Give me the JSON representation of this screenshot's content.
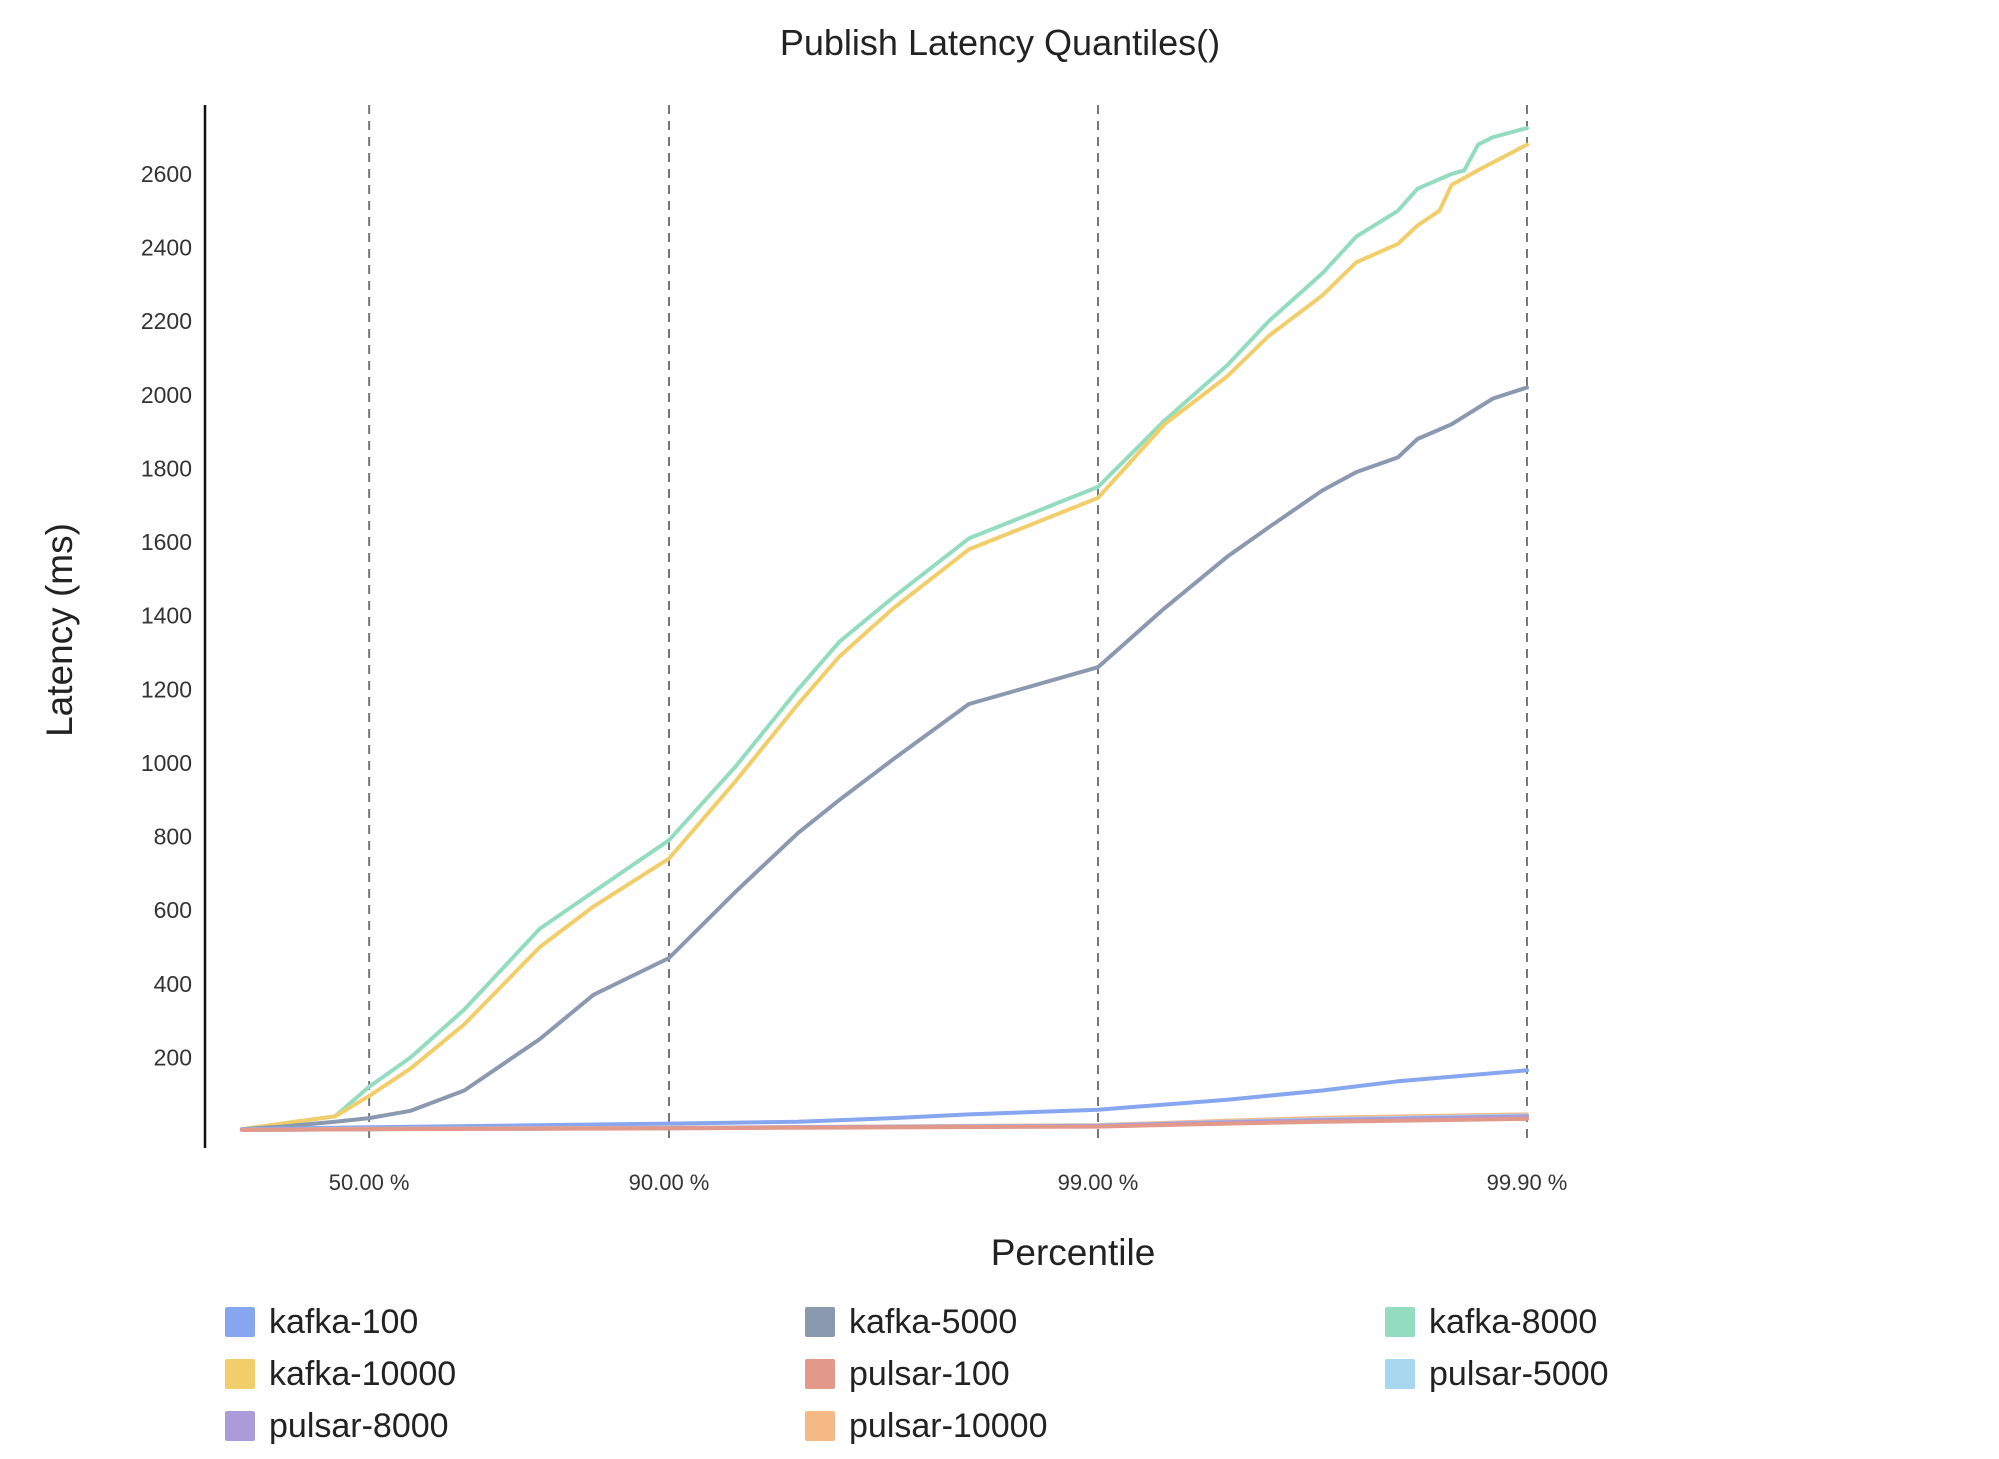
{
  "chart_data": {
    "type": "line",
    "title": "Publish Latency Quantiles()",
    "xlabel": "Percentile",
    "ylabel": "Latency (ms)",
    "x_scale": "log-percentile (-log10(1 - p/100))",
    "x_ticks": [
      {
        "value": 50.0,
        "label": "50.00 %"
      },
      {
        "value": 90.0,
        "label": "90.00 %"
      },
      {
        "value": 99.0,
        "label": "99.00 %"
      },
      {
        "value": 99.9,
        "label": "99.90 %"
      }
    ],
    "x_gridlines": "dashed vertical at each x tick",
    "ylim": [
      0,
      2830
    ],
    "y_ticks": [
      200,
      400,
      600,
      800,
      1000,
      1200,
      1400,
      1600,
      1800,
      2000,
      2200,
      2400,
      2600
    ],
    "legend_position": "bottom",
    "series": [
      {
        "name": "kafka-100",
        "color": "#86a6f0",
        "points": [
          [
            1,
            5
          ],
          [
            50,
            10
          ],
          [
            90,
            20
          ],
          [
            95,
            25
          ],
          [
            97,
            35
          ],
          [
            98,
            45
          ],
          [
            99,
            58
          ],
          [
            99.5,
            85
          ],
          [
            99.7,
            110
          ],
          [
            99.8,
            135
          ],
          [
            99.9,
            165
          ]
        ]
      },
      {
        "name": "kafka-5000",
        "color": "#8a98b0",
        "points": [
          [
            1,
            5
          ],
          [
            20,
            12
          ],
          [
            40,
            25
          ],
          [
            50,
            35
          ],
          [
            60,
            55
          ],
          [
            70,
            110
          ],
          [
            80,
            250
          ],
          [
            85,
            370
          ],
          [
            90,
            470
          ],
          [
            93,
            650
          ],
          [
            95,
            810
          ],
          [
            96,
            900
          ],
          [
            97,
            1010
          ],
          [
            98,
            1160
          ],
          [
            99,
            1260
          ],
          [
            99.3,
            1420
          ],
          [
            99.5,
            1560
          ],
          [
            99.6,
            1640
          ],
          [
            99.7,
            1740
          ],
          [
            99.75,
            1790
          ],
          [
            99.8,
            1830
          ],
          [
            99.82,
            1880
          ],
          [
            99.85,
            1920
          ],
          [
            99.88,
            1990
          ],
          [
            99.9,
            2020
          ]
        ]
      },
      {
        "name": "kafka-8000",
        "color": "#94dcc0",
        "points": [
          [
            1,
            5
          ],
          [
            20,
            20
          ],
          [
            40,
            40
          ],
          [
            50,
            120
          ],
          [
            60,
            200
          ],
          [
            70,
            330
          ],
          [
            80,
            550
          ],
          [
            85,
            650
          ],
          [
            90,
            790
          ],
          [
            93,
            990
          ],
          [
            95,
            1200
          ],
          [
            96,
            1330
          ],
          [
            97,
            1450
          ],
          [
            98,
            1610
          ],
          [
            99,
            1750
          ],
          [
            99.3,
            1930
          ],
          [
            99.5,
            2080
          ],
          [
            99.6,
            2200
          ],
          [
            99.7,
            2330
          ],
          [
            99.75,
            2430
          ],
          [
            99.8,
            2500
          ],
          [
            99.82,
            2560
          ],
          [
            99.85,
            2600
          ],
          [
            99.86,
            2610
          ],
          [
            99.87,
            2680
          ],
          [
            99.88,
            2700
          ],
          [
            99.9,
            2725
          ]
        ]
      },
      {
        "name": "kafka-10000",
        "color": "#f2ce6a",
        "points": [
          [
            1,
            5
          ],
          [
            20,
            20
          ],
          [
            40,
            40
          ],
          [
            50,
            95
          ],
          [
            60,
            170
          ],
          [
            70,
            290
          ],
          [
            80,
            500
          ],
          [
            85,
            610
          ],
          [
            90,
            740
          ],
          [
            93,
            950
          ],
          [
            95,
            1160
          ],
          [
            96,
            1290
          ],
          [
            97,
            1420
          ],
          [
            98,
            1580
          ],
          [
            99,
            1720
          ],
          [
            99.3,
            1920
          ],
          [
            99.5,
            2050
          ],
          [
            99.6,
            2160
          ],
          [
            99.7,
            2270
          ],
          [
            99.75,
            2360
          ],
          [
            99.8,
            2410
          ],
          [
            99.82,
            2460
          ],
          [
            99.84,
            2500
          ],
          [
            99.85,
            2570
          ],
          [
            99.87,
            2610
          ],
          [
            99.9,
            2680
          ]
        ]
      },
      {
        "name": "pulsar-100",
        "color": "#e2998a",
        "points": [
          [
            1,
            3
          ],
          [
            50,
            5
          ],
          [
            90,
            7
          ],
          [
            95,
            9
          ],
          [
            99,
            12
          ],
          [
            99.5,
            20
          ],
          [
            99.7,
            25
          ],
          [
            99.9,
            33
          ]
        ]
      },
      {
        "name": "pulsar-5000",
        "color": "#a6d7ef",
        "points": [
          [
            1,
            3
          ],
          [
            50,
            5
          ],
          [
            90,
            8
          ],
          [
            95,
            10
          ],
          [
            99,
            15
          ],
          [
            99.5,
            25
          ],
          [
            99.7,
            32
          ],
          [
            99.9,
            42
          ]
        ]
      },
      {
        "name": "pulsar-8000",
        "color": "#ab9cd9",
        "points": [
          [
            1,
            3
          ],
          [
            50,
            5
          ],
          [
            90,
            8
          ],
          [
            95,
            10
          ],
          [
            99,
            14
          ],
          [
            99.5,
            24
          ],
          [
            99.7,
            30
          ],
          [
            99.9,
            40
          ]
        ]
      },
      {
        "name": "pulsar-10000",
        "color": "#f4b985",
        "points": [
          [
            1,
            3
          ],
          [
            50,
            6
          ],
          [
            90,
            9
          ],
          [
            95,
            11
          ],
          [
            99,
            16
          ],
          [
            99.5,
            28
          ],
          [
            99.7,
            36
          ],
          [
            99.9,
            45
          ]
        ]
      }
    ]
  }
}
